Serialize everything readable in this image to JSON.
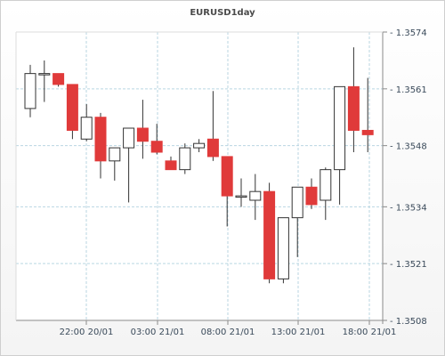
{
  "chart_data": {
    "type": "candlestick",
    "title": "EURUSD1day",
    "xlabel": "",
    "ylabel": "",
    "ylim": [
      1.3508,
      1.3574
    ],
    "y_ticks": [
      "1.3574",
      "1.3561",
      "1.3548",
      "1.3534",
      "1.3521",
      "1.3508"
    ],
    "x_ticks": [
      "22:00 20/01",
      "03:00 21/01",
      "08:00 21/01",
      "13:00 21/01",
      "18:00 21/01"
    ],
    "grid": true,
    "colors": {
      "up": "#ffffff",
      "down": "#e03a3a",
      "wick": "#333333",
      "grid": "#b9d6e2",
      "axis": "#8a8a8a"
    },
    "candles": [
      {
        "open": 1.35565,
        "high": 1.35665,
        "low": 1.35545,
        "close": 1.35645
      },
      {
        "open": 1.35645,
        "high": 1.35675,
        "low": 1.3558,
        "close": 1.35645
      },
      {
        "open": 1.35645,
        "high": 1.35645,
        "low": 1.35615,
        "close": 1.3562
      },
      {
        "open": 1.3562,
        "high": 1.3562,
        "low": 1.35495,
        "close": 1.35515
      },
      {
        "open": 1.35495,
        "high": 1.35575,
        "low": 1.3549,
        "close": 1.35545
      },
      {
        "open": 1.35545,
        "high": 1.35555,
        "low": 1.35405,
        "close": 1.35445
      },
      {
        "open": 1.35445,
        "high": 1.35475,
        "low": 1.354,
        "close": 1.35475
      },
      {
        "open": 1.35475,
        "high": 1.3552,
        "low": 1.3535,
        "close": 1.3552
      },
      {
        "open": 1.3552,
        "high": 1.35585,
        "low": 1.3545,
        "close": 1.3549
      },
      {
        "open": 1.3549,
        "high": 1.3553,
        "low": 1.3546,
        "close": 1.35465
      },
      {
        "open": 1.35445,
        "high": 1.35455,
        "low": 1.35425,
        "close": 1.35425
      },
      {
        "open": 1.35425,
        "high": 1.35485,
        "low": 1.35415,
        "close": 1.35475
      },
      {
        "open": 1.35475,
        "high": 1.35495,
        "low": 1.35465,
        "close": 1.35485
      },
      {
        "open": 1.35495,
        "high": 1.35605,
        "low": 1.35445,
        "close": 1.35455
      },
      {
        "open": 1.35455,
        "high": 1.35455,
        "low": 1.35295,
        "close": 1.35365
      },
      {
        "open": 1.35365,
        "high": 1.35405,
        "low": 1.3534,
        "close": 1.35365
      },
      {
        "open": 1.35355,
        "high": 1.35415,
        "low": 1.3531,
        "close": 1.35375
      },
      {
        "open": 1.35375,
        "high": 1.35395,
        "low": 1.35165,
        "close": 1.35175
      },
      {
        "open": 1.35175,
        "high": 1.35315,
        "low": 1.35165,
        "close": 1.35315
      },
      {
        "open": 1.35315,
        "high": 1.35385,
        "low": 1.35225,
        "close": 1.35385
      },
      {
        "open": 1.35385,
        "high": 1.35405,
        "low": 1.35335,
        "close": 1.35345
      },
      {
        "open": 1.35355,
        "high": 1.3543,
        "low": 1.3531,
        "close": 1.35425
      },
      {
        "open": 1.35425,
        "high": 1.35615,
        "low": 1.35345,
        "close": 1.35615
      },
      {
        "open": 1.35615,
        "high": 1.35705,
        "low": 1.35465,
        "close": 1.35515
      },
      {
        "open": 1.35515,
        "high": 1.35635,
        "low": 1.35465,
        "close": 1.35505
      }
    ]
  }
}
